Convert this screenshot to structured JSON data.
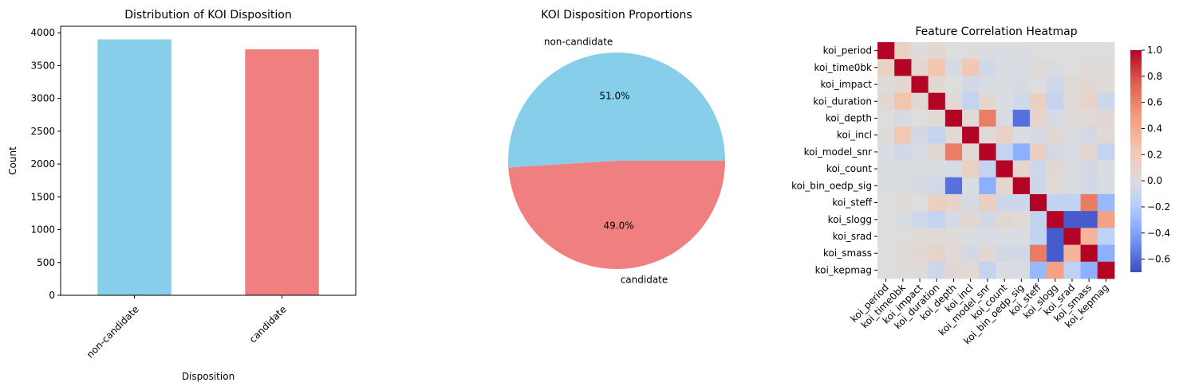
{
  "chart_data": [
    {
      "type": "bar",
      "title": "Distribution of KOI Disposition",
      "xlabel": "Disposition",
      "ylabel": "Count",
      "categories": [
        "non-candidate",
        "candidate"
      ],
      "values": [
        3900,
        3750
      ],
      "colors": [
        "#87CEEB",
        "#F08080"
      ],
      "ylim": [
        0,
        4100
      ],
      "yticks": [
        0,
        500,
        1000,
        1500,
        2000,
        2500,
        3000,
        3500,
        4000
      ]
    },
    {
      "type": "pie",
      "title": "KOI Disposition Proportions",
      "labels": [
        "non-candidate",
        "candidate"
      ],
      "values": [
        51.0,
        49.0
      ],
      "pct_labels": [
        "51.0%",
        "49.0%"
      ],
      "colors": [
        "#87CEEB",
        "#F08080"
      ]
    },
    {
      "type": "heatmap",
      "title": "Feature Correlation Heatmap",
      "labels": [
        "koi_period",
        "koi_time0bk",
        "koi_impact",
        "koi_duration",
        "koi_depth",
        "koi_incl",
        "koi_model_snr",
        "koi_count",
        "koi_bin_oedp_sig",
        "koi_steff",
        "koi_slogg",
        "koi_srad",
        "koi_smass",
        "koi_kepmag"
      ],
      "matrix": [
        [
          1.0,
          0.12,
          0.02,
          0.06,
          0.0,
          0.02,
          -0.02,
          -0.02,
          -0.02,
          0.0,
          0.0,
          0.0,
          0.0,
          0.0
        ],
        [
          0.12,
          1.0,
          0.06,
          0.25,
          -0.04,
          0.22,
          -0.06,
          -0.02,
          -0.02,
          0.02,
          -0.02,
          0.0,
          0.03,
          0.02
        ],
        [
          0.02,
          0.06,
          1.0,
          0.05,
          0.0,
          -0.05,
          -0.03,
          -0.02,
          -0.04,
          0.0,
          -0.07,
          0.03,
          0.06,
          0.02
        ],
        [
          0.06,
          0.25,
          0.05,
          1.0,
          0.04,
          -0.12,
          0.06,
          -0.02,
          -0.06,
          0.14,
          -0.12,
          0.03,
          0.09,
          -0.08
        ],
        [
          0.0,
          -0.04,
          0.0,
          0.04,
          1.0,
          0.04,
          0.62,
          -0.03,
          -0.58,
          0.1,
          -0.04,
          0.02,
          0.04,
          0.05
        ],
        [
          0.02,
          0.22,
          -0.05,
          -0.12,
          0.04,
          1.0,
          0.04,
          0.12,
          -0.02,
          -0.04,
          0.06,
          -0.02,
          -0.05,
          0.04
        ],
        [
          -0.02,
          -0.06,
          -0.03,
          0.06,
          0.62,
          0.04,
          1.0,
          -0.12,
          -0.35,
          0.15,
          -0.05,
          -0.03,
          0.06,
          -0.12
        ],
        [
          -0.02,
          -0.02,
          -0.02,
          -0.02,
          -0.03,
          0.12,
          -0.12,
          1.0,
          0.08,
          -0.08,
          0.06,
          -0.02,
          -0.05,
          -0.02
        ],
        [
          -0.02,
          -0.02,
          -0.04,
          -0.06,
          -0.58,
          -0.02,
          -0.35,
          0.08,
          1.0,
          -0.08,
          0.03,
          -0.02,
          -0.05,
          -0.03
        ],
        [
          0.0,
          0.02,
          0.0,
          0.14,
          0.1,
          -0.04,
          0.15,
          -0.08,
          -0.08,
          1.0,
          -0.13,
          -0.13,
          0.63,
          -0.3
        ],
        [
          0.0,
          -0.02,
          -0.07,
          -0.12,
          -0.04,
          0.06,
          -0.05,
          0.06,
          0.03,
          -0.13,
          1.0,
          -0.65,
          -0.65,
          0.45
        ],
        [
          0.0,
          0.0,
          0.03,
          0.03,
          0.02,
          -0.02,
          -0.03,
          -0.02,
          -0.02,
          -0.13,
          -0.65,
          1.0,
          0.35,
          -0.15
        ],
        [
          0.0,
          0.03,
          0.06,
          0.09,
          0.04,
          -0.05,
          0.06,
          -0.05,
          -0.05,
          0.63,
          -0.65,
          0.35,
          1.0,
          -0.35
        ],
        [
          0.0,
          0.02,
          0.02,
          -0.08,
          0.05,
          0.04,
          -0.12,
          -0.02,
          -0.03,
          -0.3,
          0.45,
          -0.15,
          -0.35,
          1.0
        ]
      ],
      "colormap": "coolwarm",
      "vmin": -0.7,
      "vmax": 1.0,
      "colorbar_ticks": [
        "1.0",
        "0.8",
        "0.6",
        "0.4",
        "0.2",
        "0.0",
        "−0.2",
        "−0.4",
        "−0.6"
      ],
      "colorbar_tick_values": [
        1.0,
        0.8,
        0.6,
        0.4,
        0.2,
        0.0,
        -0.2,
        -0.4,
        -0.6
      ],
      "grid": false
    }
  ]
}
